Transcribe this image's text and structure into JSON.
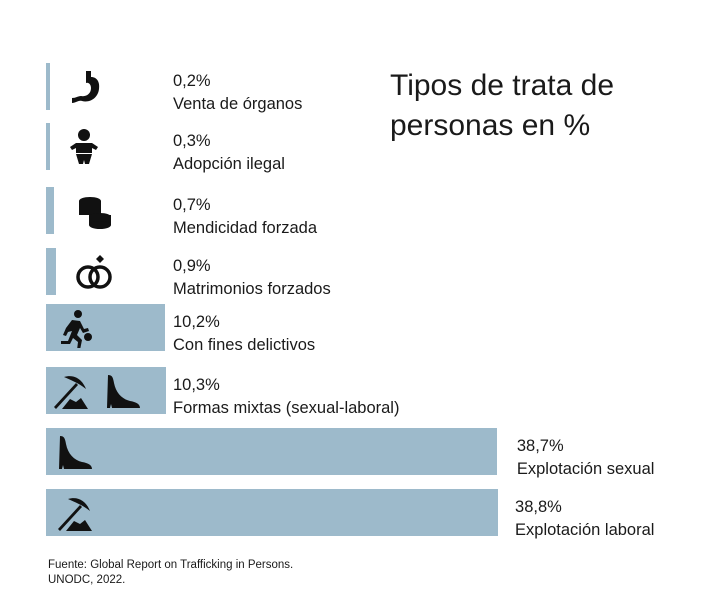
{
  "chart_data": {
    "type": "bar",
    "orientation": "horizontal",
    "title": "Tipos de trata de personas en %",
    "categories": [
      "Venta de órganos",
      "Adopción ilegal",
      "Mendicidad forzada",
      "Matrimonios forzados",
      "Con fines delictivos",
      "Formas mixtas (sexual-laboral)",
      "Explotación sexual",
      "Explotación laboral"
    ],
    "values": [
      0.2,
      0.3,
      0.7,
      0.9,
      10.2,
      10.3,
      38.7,
      38.8
    ],
    "value_labels": [
      "0,2%",
      "0,3%",
      "0,7%",
      "0,9%",
      "10,2%",
      "10,3%",
      "38,7%",
      "38,8%"
    ],
    "icons": [
      "stomach-icon",
      "baby-icon",
      "coins-icon",
      "rings-icon",
      "running-thief-icon",
      "pickaxe-and-heel-icon",
      "high-heel-icon",
      "pickaxe-icon"
    ],
    "bar_color": "#9dbacb",
    "grid": false,
    "xlabel": "",
    "ylabel": ""
  },
  "source": {
    "line1": "Fuente: Global Report on Trafficking in Persons.",
    "line2": "UNODC, 2022."
  }
}
